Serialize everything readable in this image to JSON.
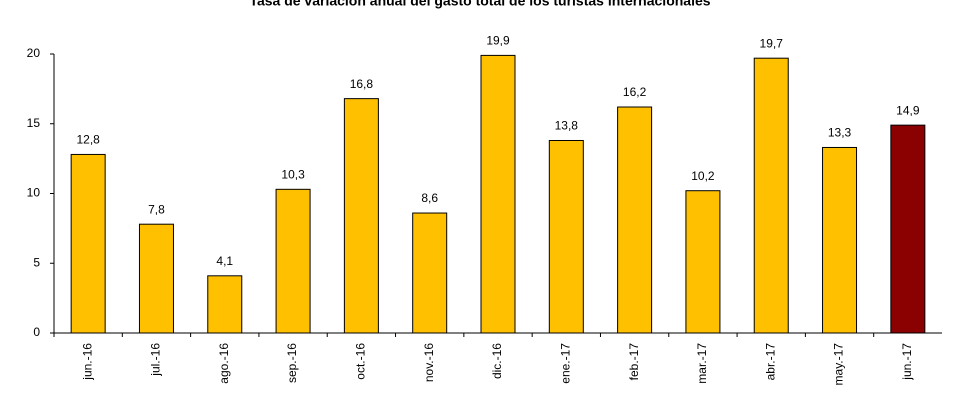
{
  "chart_data": {
    "type": "bar",
    "title": "Tasa de variación anual del gasto total de los turistas internacionales",
    "categories": [
      "jun.-16",
      "jul.-16",
      "ago.-16",
      "sep.-16",
      "oct.-16",
      "nov.-16",
      "dic.-16",
      "ene.-17",
      "feb.-17",
      "mar.-17",
      "abr.-17",
      "may.-17",
      "jun.-17"
    ],
    "values": [
      12.8,
      7.8,
      4.1,
      10.3,
      16.8,
      8.6,
      19.9,
      13.8,
      16.2,
      10.2,
      19.7,
      13.3,
      14.9
    ],
    "value_labels": [
      "12,8",
      "7,8",
      "4,1",
      "10,3",
      "16,8",
      "8,6",
      "19,9",
      "13,8",
      "16,2",
      "10,2",
      "19,7",
      "13,3",
      "14,9"
    ],
    "colors": [
      "#ffc000",
      "#ffc000",
      "#ffc000",
      "#ffc000",
      "#ffc000",
      "#ffc000",
      "#ffc000",
      "#ffc000",
      "#ffc000",
      "#ffc000",
      "#ffc000",
      "#ffc000",
      "#8b0000"
    ],
    "ylim": [
      0,
      20
    ],
    "yticks": [
      0,
      5,
      10,
      15,
      20
    ],
    "grid": false
  }
}
